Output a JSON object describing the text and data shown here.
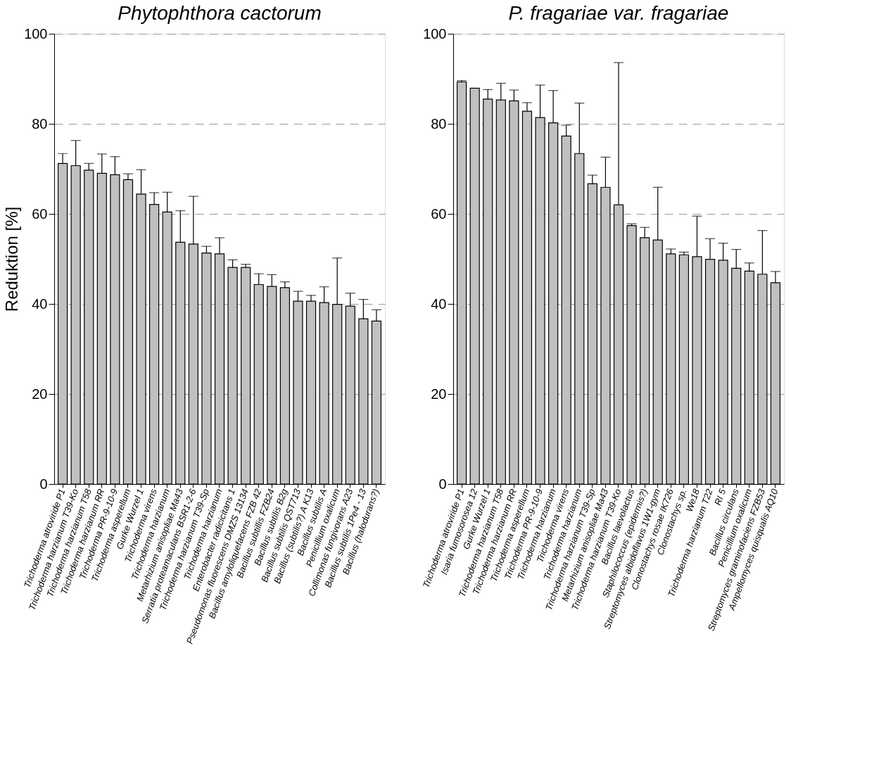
{
  "chart_data": [
    {
      "type": "bar",
      "title": "Phytophthora cactorum",
      "ylabel": "Reduktion [%]",
      "color": "#c0c0c0",
      "ylim": [
        0,
        100
      ],
      "yticks": [
        0,
        20,
        40,
        60,
        80,
        100
      ],
      "grid": "y",
      "categories": [
        "Trichoderma atroviride P1",
        "Trichoderma harzianum T39-Ko",
        "Trichoderma harzianum T58",
        "Trichoderma harzianum RR",
        "Trichoderma PR-9-10-9",
        "Trichoderma asperellum",
        "Gurke Wurzel 1",
        "Trichoderma virens",
        "Trichoderma harzianum",
        "Metarhizium anisopliae Ma43",
        "Serratia proteamaculans BSR1-2-6",
        "Trichoderma harzianum T39-Sp",
        "Trichoderma harzianum",
        "Enterobacter radicicitans 1",
        "Pseudomonas fluorescens DMZS 13134",
        "Bacillus amyloliquefacens FZB 42",
        "Bacillus subtillis FZB24",
        "Bacillus subtilis B2g",
        "Bacillus subtilis QST713",
        "Bacillus (subtilis?) A K13",
        "Bacillus subtilis A",
        "Penicillium oxalicum",
        "Collimonas fungivorans A23",
        "Bacillus subtilis 1Pe4 - 13",
        "Bacillus (halodurans?)"
      ],
      "values": [
        71.2,
        70.7,
        69.7,
        69.0,
        68.7,
        67.6,
        64.4,
        62.1,
        60.4,
        53.7,
        53.3,
        51.3,
        51.1,
        48.1,
        48.1,
        44.3,
        43.9,
        43.6,
        40.6,
        40.6,
        40.3,
        39.9,
        39.5,
        36.7,
        36.2
      ],
      "errors": [
        [
          71.2,
          73.4
        ],
        [
          70.7,
          76.3
        ],
        [
          69.7,
          71.2
        ],
        [
          69.0,
          73.3
        ],
        [
          68.7,
          72.7
        ],
        [
          67.6,
          68.9
        ],
        [
          64.4,
          69.8
        ],
        [
          62.1,
          64.7
        ],
        [
          60.4,
          64.8
        ],
        [
          53.7,
          60.7
        ],
        [
          53.3,
          63.9
        ],
        [
          51.3,
          52.8
        ],
        [
          51.1,
          54.7
        ],
        [
          48.1,
          49.8
        ],
        [
          48.1,
          48.8
        ],
        [
          44.3,
          46.7
        ],
        [
          43.9,
          46.5
        ],
        [
          43.6,
          44.9
        ],
        [
          40.6,
          42.8
        ],
        [
          40.6,
          41.9
        ],
        [
          40.3,
          43.8
        ],
        [
          39.9,
          50.2
        ],
        [
          39.5,
          42.4
        ],
        [
          36.7,
          41.0
        ],
        [
          36.2,
          38.7
        ]
      ]
    },
    {
      "type": "bar",
      "title": "P. fragariae var. fragariae",
      "color": "#c0c0c0",
      "ylim": [
        0,
        100
      ],
      "yticks": [
        0,
        20,
        40,
        60,
        80,
        100
      ],
      "grid": "y",
      "categories": [
        "Trichoderma atroviride P1",
        "Isaria fumosorosea 12",
        "Gurke Wurzel 1",
        "Trichoderma harzianum T58",
        "Trichoderma harzianum RR",
        "Trichoderma asperellum",
        "Trichoderma PR-9-10-9",
        "Trichoderma harzianum",
        "Trichoderma virens",
        "Trichoderma harzianum",
        "Trichoderma harzianum T39-Sp",
        "Metarhizium anisopliae Ma43",
        "Trichoderma harzianum T39-Ko",
        "Bacillus laevolactus",
        "Staphilococcus (epidermis?)",
        "Streptomyces albidoflavus 1W1-gym",
        "Clonostachys rosae IK726",
        "Clonostachys sp.",
        "We18",
        "Trichoderma harzianum T22",
        "RI 5",
        "Bacillus circulans",
        "Penicillium oxalicum",
        "Streptomyces graminofaciens FZB53",
        "Ampellomyces quisqualis AQ10"
      ],
      "values": [
        89.3,
        87.9,
        85.5,
        85.3,
        85.1,
        82.8,
        81.4,
        80.2,
        77.3,
        73.4,
        66.7,
        65.9,
        62.0,
        57.4,
        54.7,
        54.2,
        51.1,
        50.9,
        50.5,
        49.9,
        49.7,
        47.9,
        47.3,
        46.6,
        44.7
      ],
      "errors": [
        [
          89.3,
          89.6
        ],
        null,
        [
          85.5,
          87.6
        ],
        [
          85.3,
          89.0
        ],
        [
          85.1,
          87.5
        ],
        [
          82.8,
          84.7
        ],
        [
          81.4,
          88.6
        ],
        [
          80.2,
          87.4
        ],
        [
          77.3,
          79.7
        ],
        [
          73.4,
          84.6
        ],
        [
          66.7,
          68.6
        ],
        [
          65.9,
          72.6
        ],
        [
          62.0,
          93.6
        ],
        [
          57.4,
          57.8
        ],
        [
          54.7,
          57.0
        ],
        [
          54.2,
          65.9
        ],
        [
          51.1,
          52.2
        ],
        [
          50.9,
          51.5
        ],
        [
          50.5,
          59.5
        ],
        [
          49.9,
          54.5
        ],
        [
          49.7,
          53.5
        ],
        [
          47.9,
          52.1
        ],
        [
          47.3,
          49.1
        ],
        [
          46.6,
          56.3
        ],
        [
          44.7,
          47.2
        ]
      ]
    }
  ]
}
